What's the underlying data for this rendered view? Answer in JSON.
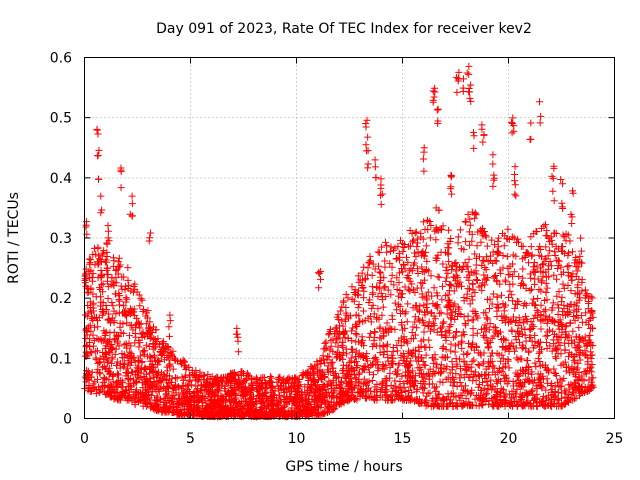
{
  "chart_data": {
    "type": "scatter",
    "title": "Day 091 of 2023, Rate Of TEC Index for receiver kev2",
    "xlabel": "GPS time / hours",
    "ylabel": "ROTI / TECUs",
    "xlim": [
      0,
      25
    ],
    "ylim": [
      0,
      0.6
    ],
    "xticks": [
      0,
      5,
      10,
      15,
      20,
      25
    ],
    "xtick_labels": [
      "0",
      "5",
      "10",
      "15",
      "20",
      "25"
    ],
    "yticks": [
      0,
      0.1,
      0.2,
      0.3,
      0.4,
      0.5,
      0.6
    ],
    "ytick_labels": [
      "0",
      "0.1",
      "0.2",
      "0.3",
      "0.4",
      "0.5",
      "0.6"
    ],
    "grid": true,
    "marker": "+",
    "color": "#ff0000",
    "envelope": {
      "x": [
        0,
        0.5,
        1,
        1.5,
        2,
        2.5,
        3,
        3.5,
        4,
        4.5,
        5,
        5.5,
        6,
        6.5,
        7,
        7.5,
        8,
        8.5,
        9,
        9.5,
        10,
        10.5,
        11,
        11.5,
        12,
        12.5,
        13,
        13.5,
        14,
        14.5,
        15,
        15.5,
        16,
        16.5,
        17,
        17.5,
        18,
        18.5,
        19,
        19.5,
        20,
        20.5,
        21,
        21.5,
        22,
        22.5,
        23,
        23.5,
        24
      ],
      "y_low": [
        0.05,
        0.04,
        0.04,
        0.03,
        0.03,
        0.02,
        0.02,
        0.01,
        0.01,
        0.005,
        0.005,
        0.003,
        0.003,
        0.003,
        0.003,
        0.003,
        0.003,
        0.003,
        0.003,
        0.003,
        0.003,
        0.003,
        0.005,
        0.01,
        0.02,
        0.03,
        0.03,
        0.03,
        0.03,
        0.03,
        0.03,
        0.03,
        0.02,
        0.02,
        0.02,
        0.02,
        0.02,
        0.02,
        0.02,
        0.02,
        0.02,
        0.02,
        0.02,
        0.02,
        0.02,
        0.02,
        0.03,
        0.04,
        0.05
      ],
      "y_high": [
        0.25,
        0.3,
        0.28,
        0.27,
        0.26,
        0.22,
        0.18,
        0.14,
        0.12,
        0.1,
        0.09,
        0.08,
        0.07,
        0.07,
        0.08,
        0.08,
        0.07,
        0.07,
        0.07,
        0.07,
        0.07,
        0.08,
        0.1,
        0.14,
        0.18,
        0.22,
        0.25,
        0.28,
        0.3,
        0.3,
        0.3,
        0.32,
        0.35,
        0.38,
        0.32,
        0.3,
        0.35,
        0.35,
        0.3,
        0.3,
        0.32,
        0.3,
        0.3,
        0.32,
        0.33,
        0.33,
        0.3,
        0.25,
        0.2
      ]
    },
    "peaks": [
      {
        "x": 0.1,
        "y": 0.35
      },
      {
        "x": 0.6,
        "y": 0.49
      },
      {
        "x": 0.65,
        "y": 0.45
      },
      {
        "x": 0.8,
        "y": 0.39
      },
      {
        "x": 1.1,
        "y": 0.34
      },
      {
        "x": 1.7,
        "y": 0.42
      },
      {
        "x": 2.2,
        "y": 0.38
      },
      {
        "x": 3.1,
        "y": 0.31
      },
      {
        "x": 4.0,
        "y": 0.18
      },
      {
        "x": 7.2,
        "y": 0.17
      },
      {
        "x": 11.1,
        "y": 0.25
      },
      {
        "x": 13.3,
        "y": 0.5
      },
      {
        "x": 13.4,
        "y": 0.45
      },
      {
        "x": 13.7,
        "y": 0.44
      },
      {
        "x": 14.0,
        "y": 0.4
      },
      {
        "x": 16.0,
        "y": 0.45
      },
      {
        "x": 16.5,
        "y": 0.55
      },
      {
        "x": 16.7,
        "y": 0.52
      },
      {
        "x": 17.3,
        "y": 0.41
      },
      {
        "x": 17.6,
        "y": 0.58
      },
      {
        "x": 17.9,
        "y": 0.57
      },
      {
        "x": 18.1,
        "y": 0.6
      },
      {
        "x": 18.2,
        "y": 0.56
      },
      {
        "x": 18.4,
        "y": 0.5
      },
      {
        "x": 18.8,
        "y": 0.51
      },
      {
        "x": 19.3,
        "y": 0.44
      },
      {
        "x": 20.2,
        "y": 0.5
      },
      {
        "x": 20.3,
        "y": 0.42
      },
      {
        "x": 21.0,
        "y": 0.5
      },
      {
        "x": 21.5,
        "y": 0.53
      },
      {
        "x": 22.1,
        "y": 0.42
      },
      {
        "x": 22.5,
        "y": 0.4
      },
      {
        "x": 23.0,
        "y": 0.38
      },
      {
        "x": 23.4,
        "y": 0.3
      }
    ]
  }
}
